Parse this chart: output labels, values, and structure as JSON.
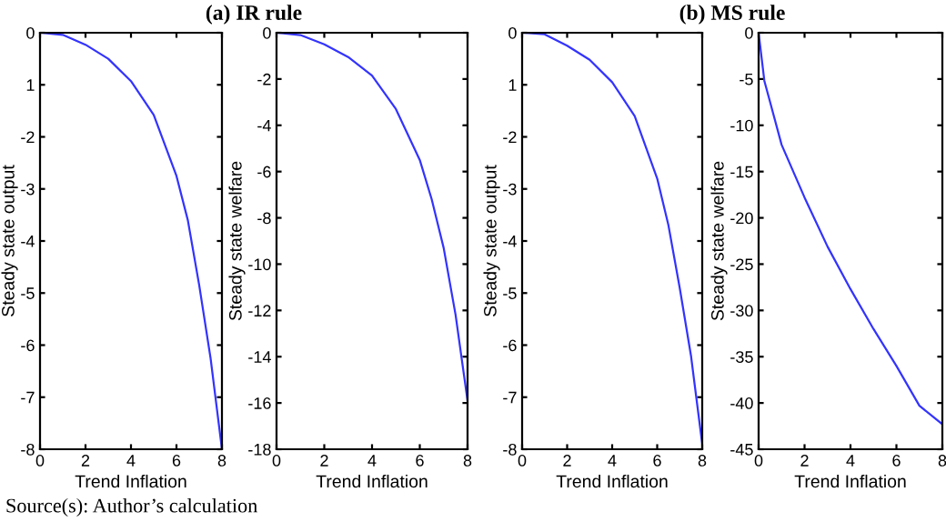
{
  "chart_data": [
    {
      "type": "line",
      "title": "(a) IR rule",
      "xlabel": "Trend Inflation",
      "ylabel": "Steady state output",
      "xlim": [
        0,
        8
      ],
      "xticks": [
        0,
        2,
        4,
        6,
        8
      ],
      "ylim": [
        -8,
        0
      ],
      "yticks": [
        -8,
        -7,
        -6,
        -5,
        -4,
        -3,
        -2,
        {
          "value": -1,
          "label": "1"
        },
        0
      ],
      "grid": false,
      "annotations": [
        "Source(s): Author’s calculation"
      ],
      "series": [
        {
          "color": "#3333ff",
          "x": [
            0,
            1,
            2,
            3,
            4,
            5,
            6,
            6.5,
            7,
            7.5,
            8
          ],
          "values": [
            0,
            -0.04,
            -0.23,
            -0.5,
            -0.93,
            -1.58,
            -2.75,
            -3.6,
            -4.85,
            -6.25,
            -8
          ]
        }
      ]
    },
    {
      "type": "line",
      "xlabel": "Trend Inflation",
      "ylabel": "Steady state welfare",
      "xlim": [
        0,
        8
      ],
      "xticks": [
        0,
        2,
        4,
        6,
        8
      ],
      "ylim": [
        -18,
        0
      ],
      "yticks": [
        -18,
        -16,
        -14,
        -12,
        -10,
        -8,
        -6,
        -4,
        -2,
        0
      ],
      "grid": false,
      "series": [
        {
          "color": "#3333ff",
          "x": [
            0,
            1,
            2,
            3,
            4,
            5,
            6,
            6.5,
            7,
            7.5,
            8
          ],
          "values": [
            0,
            -0.1,
            -0.5,
            -1.05,
            -1.85,
            -3.3,
            -5.5,
            -7.2,
            -9.3,
            -12.2,
            -15.9
          ]
        }
      ]
    },
    {
      "type": "line",
      "title": "(b) MS rule",
      "xlabel": "Trend Inflation",
      "ylabel": "Steady state output",
      "xlim": [
        0,
        8
      ],
      "xticks": [
        0,
        2,
        4,
        6,
        8
      ],
      "ylim": [
        -8,
        0
      ],
      "yticks": [
        -8,
        -7,
        -6,
        -5,
        -4,
        -3,
        -2,
        {
          "value": -1,
          "label": "1"
        },
        0
      ],
      "grid": false,
      "series": [
        {
          "color": "#3333ff",
          "x": [
            0,
            1,
            2,
            3,
            4,
            5,
            6,
            6.5,
            7,
            7.5,
            8
          ],
          "values": [
            0,
            -0.03,
            -0.25,
            -0.52,
            -0.95,
            -1.6,
            -2.8,
            -3.7,
            -4.9,
            -6.2,
            -7.9
          ]
        }
      ]
    },
    {
      "type": "line",
      "xlabel": "Trend Inflation",
      "ylabel": "Steady state welfare",
      "xlim": [
        0,
        8
      ],
      "xticks": [
        0,
        2,
        4,
        6,
        8
      ],
      "ylim": [
        -45,
        0
      ],
      "yticks": [
        -45,
        -40,
        -35,
        -30,
        -25,
        -20,
        -15,
        -10,
        -5,
        0
      ],
      "grid": false,
      "series": [
        {
          "color": "#3333ff",
          "x": [
            0,
            0.25,
            0.5,
            1,
            2,
            3,
            4,
            5,
            6,
            7,
            8
          ],
          "values": [
            0,
            -5.2,
            -7.5,
            -12.1,
            -17.8,
            -23.1,
            -27.7,
            -32,
            -36,
            -40.3,
            -42.3
          ]
        }
      ]
    }
  ]
}
